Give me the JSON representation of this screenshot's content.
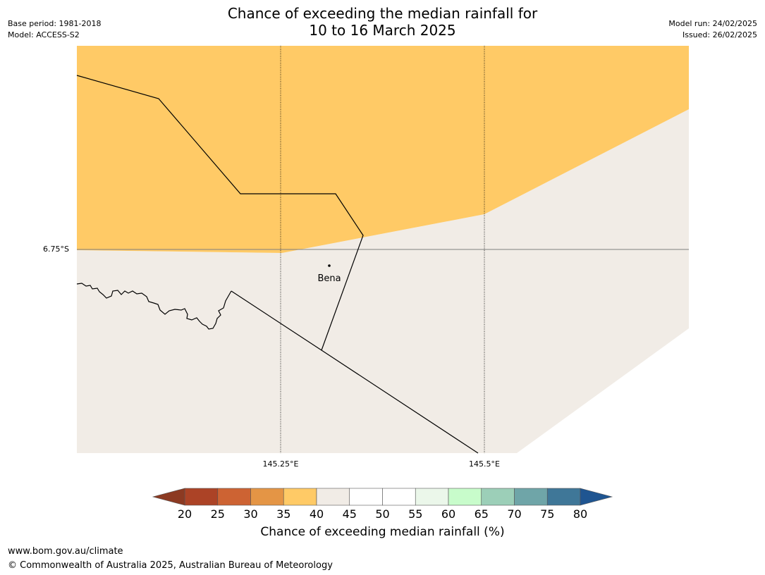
{
  "header": {
    "title_line1": "Chance of exceeding the median rainfall for",
    "title_line2": "10 to 16 March 2025",
    "base_period": "Base period: 1981-2018",
    "model": "Model: ACCESS-S2",
    "model_run": "Model run: 24/02/2025",
    "issued": "Issued: 26/02/2025"
  },
  "map": {
    "latitude_label": "6.75°S",
    "longitude_labels": [
      "145.25°E",
      "145.5°E"
    ],
    "place": "Bena",
    "colors": {
      "above_35_40": "#FFCA66",
      "band_40_45": "#F1ECE6",
      "border": "#000000",
      "gridline": "#7f7f7f"
    }
  },
  "colorbar": {
    "ticks": [
      "20",
      "25",
      "30",
      "35",
      "40",
      "45",
      "50",
      "55",
      "60",
      "65",
      "70",
      "75",
      "80"
    ],
    "label": "Chance of exceeding median rainfall (%)",
    "colors": [
      "#AC4326",
      "#CD6333",
      "#E49545",
      "#FFCA66",
      "#F1ECE6",
      "#FFFFFF",
      "#FFFFFF",
      "#EBF7EA",
      "#C8FCCB",
      "#9CCFB8",
      "#6FA5A8",
      "#3F7798"
    ],
    "under_color": "#8C3A22",
    "over_color": "#1F5591"
  },
  "footer": {
    "website": "www.bom.gov.au/climate",
    "copyright": "© Commonwealth of Australia 2025, Australian Bureau of Meteorology"
  }
}
